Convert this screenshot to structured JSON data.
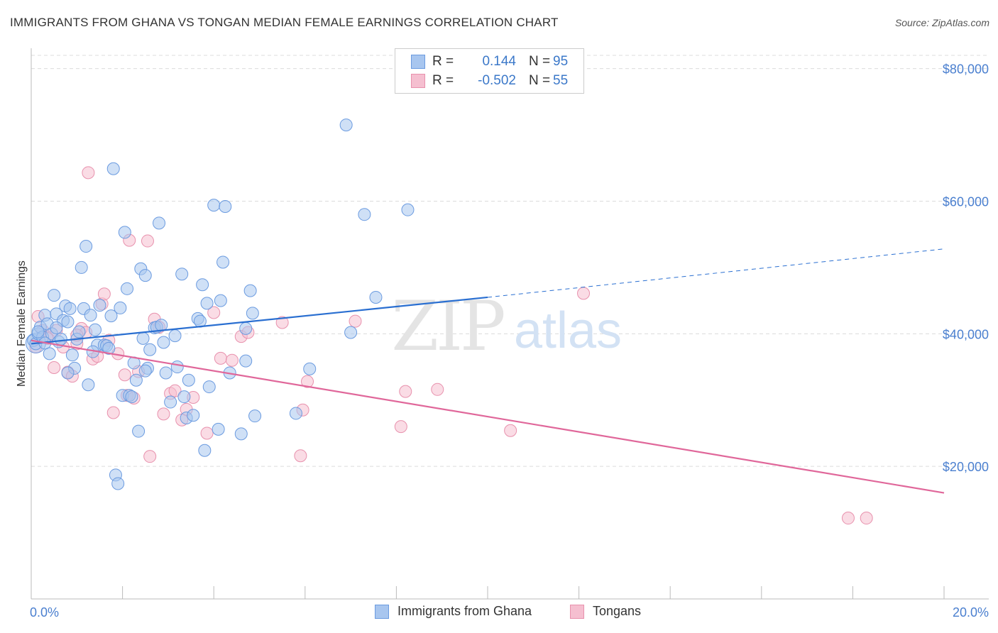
{
  "title": "IMMIGRANTS FROM GHANA VS TONGAN MEDIAN FEMALE EARNINGS CORRELATION CHART",
  "source": "Source: ZipAtlas.com",
  "watermark": {
    "zip": "ZIP",
    "atlas": "atlas"
  },
  "colors": {
    "blue_fill": "#a8c6ef",
    "blue_stroke": "#6b9be0",
    "blue_line": "#2a6fd1",
    "pink_fill": "#f5bfd0",
    "pink_stroke": "#e891ad",
    "pink_line": "#e0679a",
    "tick_text": "#4a7fcf"
  },
  "legend": {
    "rows": [
      {
        "r_label": "R =",
        "r_value": "0.144",
        "n_label": "N =",
        "n_value": "95"
      },
      {
        "r_label": "R =",
        "r_value": "-0.502",
        "n_label": "N =",
        "n_value": "55"
      }
    ]
  },
  "bottom_legend": [
    "Immigrants from Ghana",
    "Tongans"
  ],
  "chart_data": {
    "type": "scatter",
    "title": "IMMIGRANTS FROM GHANA VS TONGAN MEDIAN FEMALE EARNINGS CORRELATION CHART",
    "xlabel": "",
    "ylabel": "Median Female Earnings",
    "xlim": [
      0,
      20
    ],
    "ylim": [
      0,
      82000
    ],
    "x_tick_labels": [
      "0.0%",
      "20.0%"
    ],
    "y_ticks": [
      20000,
      40000,
      60000,
      80000
    ],
    "y_tick_labels": [
      "$20,000",
      "$40,000",
      "$60,000",
      "$80,000"
    ],
    "grid": "horizontal dashed",
    "legend_position": "top-center",
    "series": [
      {
        "name": "Immigrants from Ghana",
        "color": "#a8c6ef",
        "trend": {
          "x0": 0,
          "y0": 38500,
          "x1": 10,
          "y1": 45500,
          "x_ext": 20,
          "y_ext": 52800
        },
        "points": [
          [
            0.05,
            39000
          ],
          [
            0.1,
            38500
          ],
          [
            0.15,
            40000
          ],
          [
            0.2,
            41000
          ],
          [
            0.25,
            39500
          ],
          [
            0.3,
            42800
          ],
          [
            0.35,
            41500
          ],
          [
            0.4,
            37000
          ],
          [
            0.45,
            40000
          ],
          [
            0.5,
            45800
          ],
          [
            0.55,
            43000
          ],
          [
            0.6,
            38800
          ],
          [
            0.65,
            39200
          ],
          [
            0.7,
            42000
          ],
          [
            0.75,
            44200
          ],
          [
            0.8,
            41800
          ],
          [
            0.85,
            43800
          ],
          [
            0.9,
            36800
          ],
          [
            0.95,
            34800
          ],
          [
            1.0,
            39200
          ],
          [
            1.1,
            50000
          ],
          [
            1.15,
            43800
          ],
          [
            1.2,
            53200
          ],
          [
            1.25,
            32300
          ],
          [
            1.3,
            42800
          ],
          [
            1.4,
            40600
          ],
          [
            1.45,
            38300
          ],
          [
            1.5,
            44300
          ],
          [
            1.6,
            38300
          ],
          [
            1.65,
            38200
          ],
          [
            1.7,
            37800
          ],
          [
            1.75,
            42700
          ],
          [
            1.8,
            64900
          ],
          [
            1.85,
            18700
          ],
          [
            1.9,
            17400
          ],
          [
            1.95,
            43900
          ],
          [
            2.0,
            30700
          ],
          [
            2.05,
            55300
          ],
          [
            2.1,
            46800
          ],
          [
            2.15,
            30700
          ],
          [
            2.2,
            30500
          ],
          [
            2.25,
            35600
          ],
          [
            2.3,
            33000
          ],
          [
            2.35,
            25300
          ],
          [
            2.4,
            49800
          ],
          [
            2.45,
            39300
          ],
          [
            2.5,
            48800
          ],
          [
            2.55,
            34800
          ],
          [
            2.6,
            37600
          ],
          [
            2.7,
            40900
          ],
          [
            2.75,
            41000
          ],
          [
            2.8,
            56700
          ],
          [
            2.85,
            41300
          ],
          [
            2.9,
            38700
          ],
          [
            2.95,
            34100
          ],
          [
            3.05,
            29700
          ],
          [
            3.15,
            39700
          ],
          [
            3.2,
            35000
          ],
          [
            3.3,
            49000
          ],
          [
            3.35,
            30500
          ],
          [
            3.4,
            27300
          ],
          [
            3.45,
            33000
          ],
          [
            3.55,
            27700
          ],
          [
            3.65,
            42300
          ],
          [
            3.7,
            41900
          ],
          [
            3.75,
            47400
          ],
          [
            3.8,
            22400
          ],
          [
            3.85,
            44600
          ],
          [
            3.9,
            32000
          ],
          [
            4.0,
            59400
          ],
          [
            4.1,
            25600
          ],
          [
            4.15,
            45000
          ],
          [
            4.2,
            50800
          ],
          [
            4.25,
            59200
          ],
          [
            4.35,
            34100
          ],
          [
            4.6,
            24900
          ],
          [
            4.7,
            35900
          ],
          [
            4.8,
            46500
          ],
          [
            4.85,
            43100
          ],
          [
            4.9,
            27600
          ],
          [
            5.8,
            28000
          ],
          [
            6.1,
            34700
          ],
          [
            6.9,
            71500
          ],
          [
            7.0,
            40200
          ],
          [
            7.3,
            58000
          ],
          [
            7.55,
            45500
          ],
          [
            8.25,
            58700
          ],
          [
            0.15,
            40300
          ],
          [
            0.3,
            38600
          ],
          [
            0.55,
            40900
          ],
          [
            0.8,
            34100
          ],
          [
            1.05,
            40300
          ],
          [
            1.35,
            37300
          ],
          [
            2.5,
            34400
          ],
          [
            4.7,
            40800
          ]
        ]
      },
      {
        "name": "Tongans",
        "color": "#f5bfd0",
        "trend": {
          "x0": 0,
          "y0": 39000,
          "x1": 20,
          "y1": 16000
        },
        "points": [
          [
            0.1,
            38000
          ],
          [
            0.15,
            42600
          ],
          [
            0.25,
            40500
          ],
          [
            0.35,
            39500
          ],
          [
            0.5,
            34900
          ],
          [
            0.55,
            40500
          ],
          [
            0.7,
            38000
          ],
          [
            0.8,
            34200
          ],
          [
            0.9,
            33600
          ],
          [
            1.0,
            38500
          ],
          [
            1.1,
            40800
          ],
          [
            1.2,
            40200
          ],
          [
            1.25,
            64300
          ],
          [
            1.35,
            36200
          ],
          [
            1.45,
            36600
          ],
          [
            1.55,
            44500
          ],
          [
            1.6,
            46000
          ],
          [
            1.7,
            39000
          ],
          [
            1.8,
            28100
          ],
          [
            1.9,
            37000
          ],
          [
            2.05,
            33800
          ],
          [
            2.1,
            30700
          ],
          [
            2.15,
            54100
          ],
          [
            2.25,
            30300
          ],
          [
            2.35,
            34300
          ],
          [
            2.55,
            54000
          ],
          [
            2.6,
            21500
          ],
          [
            2.7,
            42200
          ],
          [
            2.8,
            41000
          ],
          [
            2.9,
            27900
          ],
          [
            3.05,
            31000
          ],
          [
            3.15,
            31400
          ],
          [
            3.3,
            27000
          ],
          [
            3.4,
            28600
          ],
          [
            3.55,
            30400
          ],
          [
            3.85,
            25000
          ],
          [
            4.0,
            43200
          ],
          [
            4.15,
            36300
          ],
          [
            4.4,
            36000
          ],
          [
            4.6,
            39600
          ],
          [
            4.75,
            40200
          ],
          [
            5.5,
            41700
          ],
          [
            5.9,
            21600
          ],
          [
            5.95,
            28500
          ],
          [
            6.05,
            32800
          ],
          [
            7.1,
            41900
          ],
          [
            8.1,
            26000
          ],
          [
            8.2,
            31300
          ],
          [
            8.9,
            31600
          ],
          [
            10.5,
            25400
          ],
          [
            12.1,
            46100
          ],
          [
            17.9,
            12200
          ],
          [
            18.3,
            12200
          ],
          [
            0.35,
            39300
          ],
          [
            1.0,
            39800
          ]
        ]
      }
    ]
  }
}
